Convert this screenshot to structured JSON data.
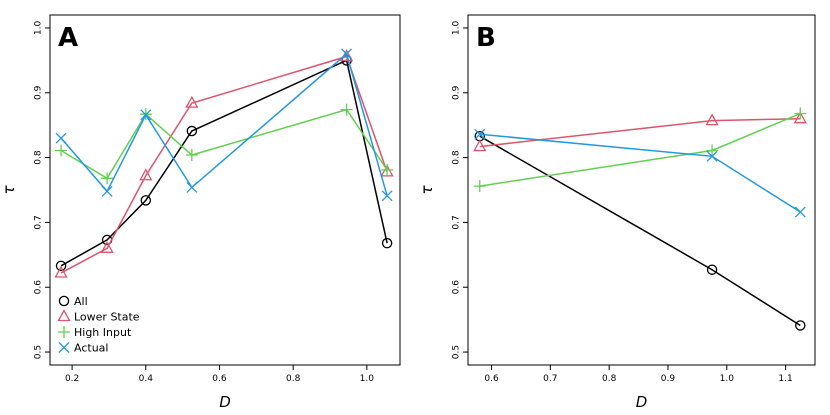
{
  "chart_data": [
    {
      "type": "line",
      "panel_label": "A",
      "xlabel": "D",
      "ylabel": "τ",
      "xlim": [
        0.14,
        1.09
      ],
      "ylim": [
        0.48,
        1.02
      ],
      "xticks": [
        0.2,
        0.4,
        0.6,
        0.8,
        1.0
      ],
      "xtick_labels": [
        "0.2",
        "0.4",
        "0.6",
        "0.8",
        "1.0"
      ],
      "yticks": [
        0.5,
        0.6,
        0.7,
        0.8,
        0.9,
        1.0
      ],
      "ytick_labels": [
        "0.5",
        "0.6",
        "0.7",
        "0.8",
        "0.9",
        "1.0"
      ],
      "legend_position": "bottom-left",
      "series": [
        {
          "name": "All",
          "color": "#000000",
          "marker": "circle",
          "x": [
            0.17,
            0.295,
            0.4,
            0.525,
            0.945,
            1.055
          ],
          "y": [
            0.633,
            0.673,
            0.734,
            0.841,
            0.95,
            0.668
          ]
        },
        {
          "name": "Lower State",
          "color": "#DF536B",
          "marker": "triangle",
          "x": [
            0.17,
            0.295,
            0.4,
            0.525,
            0.945,
            1.055
          ],
          "y": [
            0.622,
            0.66,
            0.772,
            0.884,
            0.956,
            0.778
          ]
        },
        {
          "name": "High Input",
          "color": "#61D04F",
          "marker": "plus",
          "x": [
            0.17,
            0.295,
            0.4,
            0.525,
            0.945,
            1.055
          ],
          "y": [
            0.811,
            0.768,
            0.867,
            0.804,
            0.874,
            0.781
          ]
        },
        {
          "name": "Actual",
          "color": "#2297E6",
          "marker": "cross",
          "x": [
            0.17,
            0.295,
            0.4,
            0.525,
            0.945,
            1.055
          ],
          "y": [
            0.83,
            0.748,
            0.866,
            0.754,
            0.96,
            0.741
          ]
        }
      ]
    },
    {
      "type": "line",
      "panel_label": "B",
      "xlabel": "D",
      "ylabel": "τ",
      "xlim": [
        0.56,
        1.15
      ],
      "ylim": [
        0.48,
        1.02
      ],
      "xticks": [
        0.6,
        0.7,
        0.8,
        0.9,
        1.0,
        1.1
      ],
      "xtick_labels": [
        "0.6",
        "0.7",
        "0.8",
        "0.9",
        "1.0",
        "1.1"
      ],
      "yticks": [
        0.5,
        0.6,
        0.7,
        0.8,
        0.9,
        1.0
      ],
      "ytick_labels": [
        "0.5",
        "0.6",
        "0.7",
        "0.8",
        "0.9",
        "1.0"
      ],
      "series": [
        {
          "name": "All",
          "color": "#000000",
          "marker": "circle",
          "x": [
            0.58,
            0.975,
            1.125
          ],
          "y": [
            0.833,
            0.627,
            0.541
          ]
        },
        {
          "name": "Lower State",
          "color": "#DF536B",
          "marker": "triangle",
          "x": [
            0.58,
            0.975,
            1.125
          ],
          "y": [
            0.817,
            0.857,
            0.86
          ]
        },
        {
          "name": "High Input",
          "color": "#61D04F",
          "marker": "plus",
          "x": [
            0.58,
            0.975,
            1.125
          ],
          "y": [
            0.756,
            0.811,
            0.868
          ]
        },
        {
          "name": "Actual",
          "color": "#2297E6",
          "marker": "cross",
          "x": [
            0.58,
            0.975,
            1.125
          ],
          "y": [
            0.836,
            0.802,
            0.716
          ]
        }
      ]
    }
  ]
}
